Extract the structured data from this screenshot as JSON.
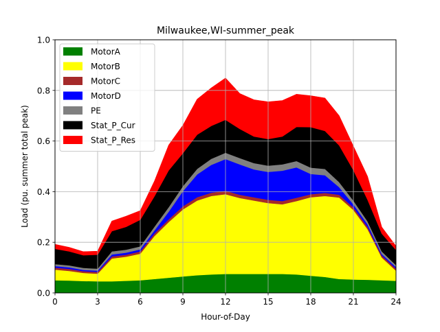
{
  "chart_data": {
    "type": "area",
    "title": "Milwaukee,WI-summer_peak",
    "xlabel": "Hour-of-Day",
    "ylabel": "Load (pu. summer total peak)",
    "xlim": [
      0,
      24
    ],
    "ylim": [
      0,
      1.0
    ],
    "xticks": [
      0,
      3,
      6,
      9,
      12,
      15,
      18,
      21,
      24
    ],
    "xtick_labels": [
      "0",
      "3",
      "6",
      "9",
      "12",
      "15",
      "18",
      "21",
      "24"
    ],
    "yticks": [
      0,
      0.2,
      0.4,
      0.6,
      0.8,
      1.0
    ],
    "ytick_labels": [
      "0.0",
      "0.2",
      "0.4",
      "0.6",
      "0.8",
      "1.0"
    ],
    "grid": true,
    "legend_position": "top-left",
    "stacked": true,
    "x": [
      0,
      1,
      2,
      3,
      4,
      5,
      6,
      7,
      8,
      9,
      10,
      11,
      12,
      13,
      14,
      15,
      16,
      17,
      18,
      19,
      20,
      21,
      22,
      23,
      24
    ],
    "series": [
      {
        "name": "MotorA",
        "color": "#008000",
        "values": [
          0.05,
          0.049,
          0.047,
          0.046,
          0.046,
          0.048,
          0.05,
          0.055,
          0.06,
          0.065,
          0.07,
          0.073,
          0.075,
          0.075,
          0.075,
          0.075,
          0.075,
          0.073,
          0.068,
          0.063,
          0.055,
          0.053,
          0.052,
          0.05,
          0.048
        ]
      },
      {
        "name": "MotorB",
        "color": "#ffff00",
        "values": [
          0.042,
          0.038,
          0.032,
          0.03,
          0.09,
          0.095,
          0.105,
          0.17,
          0.22,
          0.265,
          0.295,
          0.31,
          0.315,
          0.3,
          0.29,
          0.28,
          0.275,
          0.29,
          0.31,
          0.32,
          0.322,
          0.275,
          0.2,
          0.09,
          0.04
        ]
      },
      {
        "name": "MotorC",
        "color": "#a52a2a",
        "values": [
          0.008,
          0.008,
          0.007,
          0.007,
          0.008,
          0.008,
          0.009,
          0.01,
          0.011,
          0.012,
          0.013,
          0.013,
          0.014,
          0.013,
          0.013,
          0.013,
          0.013,
          0.013,
          0.012,
          0.012,
          0.011,
          0.01,
          0.009,
          0.008,
          0.008
        ]
      },
      {
        "name": "MotorD",
        "color": "#0000ff",
        "values": [
          0.006,
          0.006,
          0.005,
          0.005,
          0.008,
          0.008,
          0.008,
          0.012,
          0.03,
          0.06,
          0.09,
          0.11,
          0.125,
          0.12,
          0.11,
          0.11,
          0.12,
          0.12,
          0.08,
          0.07,
          0.03,
          0.012,
          0.01,
          0.006,
          0.006
        ]
      },
      {
        "name": "PE",
        "color": "#808080",
        "values": [
          0.008,
          0.008,
          0.008,
          0.008,
          0.012,
          0.012,
          0.012,
          0.015,
          0.018,
          0.02,
          0.022,
          0.024,
          0.025,
          0.025,
          0.025,
          0.025,
          0.025,
          0.025,
          0.025,
          0.025,
          0.02,
          0.015,
          0.012,
          0.01,
          0.008
        ]
      },
      {
        "name": "Stat_P_Cur",
        "color": "#000000",
        "values": [
          0.06,
          0.055,
          0.05,
          0.055,
          0.08,
          0.09,
          0.105,
          0.12,
          0.145,
          0.13,
          0.135,
          0.13,
          0.13,
          0.115,
          0.105,
          0.105,
          0.11,
          0.135,
          0.16,
          0.15,
          0.145,
          0.12,
          0.085,
          0.07,
          0.06
        ]
      },
      {
        "name": "Stat_P_Res",
        "color": "#ff0000",
        "values": [
          0.018,
          0.016,
          0.014,
          0.014,
          0.04,
          0.042,
          0.036,
          0.06,
          0.1,
          0.11,
          0.14,
          0.15,
          0.165,
          0.14,
          0.145,
          0.147,
          0.142,
          0.129,
          0.124,
          0.13,
          0.117,
          0.095,
          0.092,
          0.026,
          0.015
        ]
      }
    ]
  }
}
